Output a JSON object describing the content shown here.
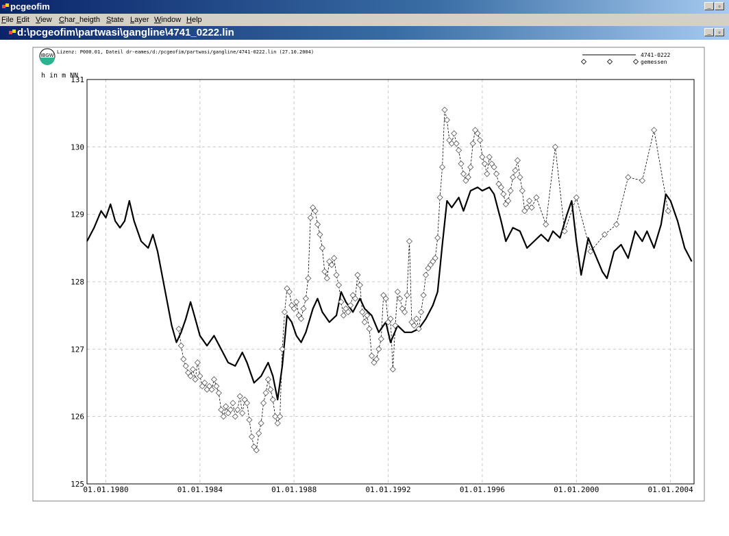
{
  "app": {
    "title": "pcgeofim",
    "menu": [
      {
        "label": "File",
        "u": "F",
        "rest": "ile"
      },
      {
        "label": "Edit",
        "u": "E",
        "rest": "dit"
      },
      {
        "label": "View",
        "u": "V",
        "rest": "iew"
      },
      {
        "label": "Char_heigth",
        "u": "C",
        "rest": "har_heigth"
      },
      {
        "label": "State",
        "u": "S",
        "rest": "tate"
      },
      {
        "label": "Layer",
        "u": "L",
        "rest": "ayer"
      },
      {
        "label": "Window",
        "u": "W",
        "rest": "indow"
      },
      {
        "label": "Help",
        "u": "H",
        "rest": "elp"
      }
    ]
  },
  "document": {
    "title": "d:\\pcgeofim\\partwasi\\gangline\\4741_0222.lin",
    "header_text": "Lizenz: P000.01, Dateil dr-eames/d:/pcgeofim/partwasi/gangline/4741-0222.lin (27.10.2004)",
    "logo_text": "IBGW"
  },
  "colors": {
    "titlebar": "#0a246a",
    "menubar": "#d4d0c8",
    "grid": "#c8c8c8"
  },
  "chart_data": {
    "type": "line",
    "title": "",
    "ylabel": "h in m NN",
    "xlabel": "",
    "ylim": [
      125,
      131
    ],
    "yticks": [
      125,
      126,
      127,
      128,
      129,
      130,
      131
    ],
    "xlim": [
      1979.2,
      2005.0
    ],
    "xticks": [
      {
        "x": 1980.0,
        "label": "01.01.1980"
      },
      {
        "x": 1984.0,
        "label": "01.01.1984"
      },
      {
        "x": 1988.0,
        "label": "01.01.1988"
      },
      {
        "x": 1992.0,
        "label": "01.01.1992"
      },
      {
        "x": 1996.0,
        "label": "01.01.1996"
      },
      {
        "x": 2000.0,
        "label": "01.01.2000"
      },
      {
        "x": 2004.0,
        "label": "01.01.2004"
      }
    ],
    "grid": true,
    "legend_position": "top-right",
    "series": [
      {
        "name": "4741-0222",
        "style": "solid",
        "points": [
          [
            1979.2,
            128.6
          ],
          [
            1979.5,
            128.8
          ],
          [
            1979.8,
            129.05
          ],
          [
            1980.0,
            128.95
          ],
          [
            1980.2,
            129.15
          ],
          [
            1980.4,
            128.9
          ],
          [
            1980.6,
            128.8
          ],
          [
            1980.8,
            128.9
          ],
          [
            1981.0,
            129.2
          ],
          [
            1981.2,
            128.9
          ],
          [
            1981.5,
            128.6
          ],
          [
            1981.8,
            128.5
          ],
          [
            1982.0,
            128.7
          ],
          [
            1982.2,
            128.45
          ],
          [
            1982.5,
            127.9
          ],
          [
            1982.8,
            127.35
          ],
          [
            1983.0,
            127.1
          ],
          [
            1983.2,
            127.25
          ],
          [
            1983.4,
            127.45
          ],
          [
            1983.6,
            127.7
          ],
          [
            1983.8,
            127.45
          ],
          [
            1984.0,
            127.2
          ],
          [
            1984.3,
            127.05
          ],
          [
            1984.6,
            127.2
          ],
          [
            1984.9,
            127.0
          ],
          [
            1985.2,
            126.8
          ],
          [
            1985.5,
            126.75
          ],
          [
            1985.8,
            126.95
          ],
          [
            1986.0,
            126.8
          ],
          [
            1986.3,
            126.5
          ],
          [
            1986.6,
            126.6
          ],
          [
            1986.9,
            126.8
          ],
          [
            1987.1,
            126.6
          ],
          [
            1987.3,
            126.25
          ],
          [
            1987.5,
            126.75
          ],
          [
            1987.7,
            127.5
          ],
          [
            1987.9,
            127.4
          ],
          [
            1988.1,
            127.2
          ],
          [
            1988.3,
            127.1
          ],
          [
            1988.5,
            127.25
          ],
          [
            1988.8,
            127.6
          ],
          [
            1989.0,
            127.75
          ],
          [
            1989.2,
            127.55
          ],
          [
            1989.5,
            127.4
          ],
          [
            1989.8,
            127.5
          ],
          [
            1990.0,
            127.85
          ],
          [
            1990.2,
            127.7
          ],
          [
            1990.5,
            127.55
          ],
          [
            1990.8,
            127.75
          ],
          [
            1991.0,
            127.6
          ],
          [
            1991.3,
            127.5
          ],
          [
            1991.6,
            127.25
          ],
          [
            1991.9,
            127.4
          ],
          [
            1992.1,
            127.1
          ],
          [
            1992.4,
            127.35
          ],
          [
            1992.7,
            127.25
          ],
          [
            1993.0,
            127.25
          ],
          [
            1993.3,
            127.3
          ],
          [
            1993.6,
            127.45
          ],
          [
            1993.9,
            127.65
          ],
          [
            1994.1,
            127.85
          ],
          [
            1994.3,
            128.55
          ],
          [
            1994.5,
            129.2
          ],
          [
            1994.7,
            129.1
          ],
          [
            1995.0,
            129.25
          ],
          [
            1995.2,
            129.05
          ],
          [
            1995.5,
            129.35
          ],
          [
            1995.8,
            129.4
          ],
          [
            1996.0,
            129.35
          ],
          [
            1996.3,
            129.4
          ],
          [
            1996.5,
            129.3
          ],
          [
            1996.8,
            128.9
          ],
          [
            1997.0,
            128.6
          ],
          [
            1997.3,
            128.8
          ],
          [
            1997.6,
            128.75
          ],
          [
            1997.9,
            128.5
          ],
          [
            1998.2,
            128.6
          ],
          [
            1998.5,
            128.7
          ],
          [
            1998.8,
            128.6
          ],
          [
            1999.0,
            128.75
          ],
          [
            1999.3,
            128.65
          ],
          [
            1999.6,
            129.0
          ],
          [
            1999.8,
            129.2
          ],
          [
            2000.0,
            128.6
          ],
          [
            2000.2,
            128.1
          ],
          [
            2000.5,
            128.65
          ],
          [
            2000.8,
            128.4
          ],
          [
            2001.1,
            128.15
          ],
          [
            2001.3,
            128.05
          ],
          [
            2001.6,
            128.45
          ],
          [
            2001.9,
            128.55
          ],
          [
            2002.2,
            128.35
          ],
          [
            2002.5,
            128.75
          ],
          [
            2002.8,
            128.6
          ],
          [
            2003.0,
            128.75
          ],
          [
            2003.3,
            128.5
          ],
          [
            2003.6,
            128.85
          ],
          [
            2003.8,
            129.3
          ],
          [
            2004.0,
            129.2
          ],
          [
            2004.3,
            128.9
          ],
          [
            2004.6,
            128.5
          ],
          [
            2004.9,
            128.3
          ]
        ]
      },
      {
        "name": "gemessen",
        "style": "dashed-diamond",
        "points": [
          [
            1983.1,
            127.3
          ],
          [
            1983.2,
            127.05
          ],
          [
            1983.3,
            126.85
          ],
          [
            1983.4,
            126.75
          ],
          [
            1983.5,
            126.65
          ],
          [
            1983.6,
            126.6
          ],
          [
            1983.7,
            126.7
          ],
          [
            1983.8,
            126.55
          ],
          [
            1983.9,
            126.8
          ],
          [
            1984.0,
            126.6
          ],
          [
            1984.1,
            126.45
          ],
          [
            1984.2,
            126.5
          ],
          [
            1984.3,
            126.4
          ],
          [
            1984.4,
            126.45
          ],
          [
            1984.5,
            126.4
          ],
          [
            1984.6,
            126.55
          ],
          [
            1984.7,
            126.45
          ],
          [
            1984.8,
            126.35
          ],
          [
            1984.9,
            126.1
          ],
          [
            1985.0,
            126.0
          ],
          [
            1985.1,
            126.15
          ],
          [
            1985.2,
            126.05
          ],
          [
            1985.3,
            126.1
          ],
          [
            1985.4,
            126.2
          ],
          [
            1985.5,
            126.0
          ],
          [
            1985.6,
            126.1
          ],
          [
            1985.7,
            126.3
          ],
          [
            1985.8,
            126.05
          ],
          [
            1985.9,
            126.25
          ],
          [
            1986.0,
            126.2
          ],
          [
            1986.1,
            125.95
          ],
          [
            1986.2,
            125.7
          ],
          [
            1986.3,
            125.55
          ],
          [
            1986.4,
            125.5
          ],
          [
            1986.5,
            125.75
          ],
          [
            1986.6,
            125.9
          ],
          [
            1986.7,
            126.2
          ],
          [
            1986.8,
            126.35
          ],
          [
            1986.9,
            126.55
          ],
          [
            1987.0,
            126.4
          ],
          [
            1987.1,
            126.25
          ],
          [
            1987.2,
            126.0
          ],
          [
            1987.3,
            125.9
          ],
          [
            1987.4,
            126.0
          ],
          [
            1987.5,
            127.0
          ],
          [
            1987.6,
            127.55
          ],
          [
            1987.7,
            127.9
          ],
          [
            1987.8,
            127.85
          ],
          [
            1987.9,
            127.65
          ],
          [
            1988.0,
            127.6
          ],
          [
            1988.1,
            127.7
          ],
          [
            1988.2,
            127.5
          ],
          [
            1988.3,
            127.45
          ],
          [
            1988.4,
            127.6
          ],
          [
            1988.5,
            127.75
          ],
          [
            1988.6,
            128.05
          ],
          [
            1988.7,
            128.95
          ],
          [
            1988.8,
            129.1
          ],
          [
            1988.9,
            129.05
          ],
          [
            1989.0,
            128.85
          ],
          [
            1989.1,
            128.7
          ],
          [
            1989.2,
            128.5
          ],
          [
            1989.3,
            128.15
          ],
          [
            1989.4,
            128.05
          ],
          [
            1989.5,
            128.3
          ],
          [
            1989.6,
            128.25
          ],
          [
            1989.7,
            128.35
          ],
          [
            1989.8,
            128.1
          ],
          [
            1989.9,
            127.95
          ],
          [
            1990.0,
            127.7
          ],
          [
            1990.1,
            127.5
          ],
          [
            1990.2,
            127.6
          ],
          [
            1990.3,
            127.55
          ],
          [
            1990.4,
            127.65
          ],
          [
            1990.5,
            127.8
          ],
          [
            1990.6,
            127.75
          ],
          [
            1990.7,
            128.1
          ],
          [
            1990.8,
            127.95
          ],
          [
            1990.9,
            127.55
          ],
          [
            1991.0,
            127.4
          ],
          [
            1991.1,
            127.5
          ],
          [
            1991.2,
            127.3
          ],
          [
            1991.3,
            126.9
          ],
          [
            1991.4,
            126.8
          ],
          [
            1991.5,
            126.85
          ],
          [
            1991.6,
            127.0
          ],
          [
            1991.7,
            127.15
          ],
          [
            1991.8,
            127.8
          ],
          [
            1991.9,
            127.75
          ],
          [
            1992.0,
            127.4
          ],
          [
            1992.1,
            127.45
          ],
          [
            1992.2,
            126.7
          ],
          [
            1992.3,
            127.35
          ],
          [
            1992.4,
            127.85
          ],
          [
            1992.5,
            127.75
          ],
          [
            1992.6,
            127.6
          ],
          [
            1992.7,
            127.55
          ],
          [
            1992.8,
            127.8
          ],
          [
            1992.9,
            128.6
          ],
          [
            1993.0,
            127.4
          ],
          [
            1993.1,
            127.35
          ],
          [
            1993.2,
            127.45
          ],
          [
            1993.3,
            127.3
          ],
          [
            1993.4,
            127.55
          ],
          [
            1993.5,
            127.8
          ],
          [
            1993.6,
            128.1
          ],
          [
            1993.7,
            128.2
          ],
          [
            1993.8,
            128.25
          ],
          [
            1993.9,
            128.3
          ],
          [
            1994.0,
            128.35
          ],
          [
            1994.1,
            128.65
          ],
          [
            1994.2,
            129.25
          ],
          [
            1994.3,
            129.7
          ],
          [
            1994.4,
            130.55
          ],
          [
            1994.5,
            130.4
          ],
          [
            1994.6,
            130.1
          ],
          [
            1994.7,
            130.05
          ],
          [
            1994.8,
            130.2
          ],
          [
            1994.9,
            130.05
          ],
          [
            1995.0,
            129.95
          ],
          [
            1995.1,
            129.75
          ],
          [
            1995.2,
            129.6
          ],
          [
            1995.3,
            129.5
          ],
          [
            1995.4,
            129.55
          ],
          [
            1995.5,
            129.7
          ],
          [
            1995.6,
            130.05
          ],
          [
            1995.7,
            130.25
          ],
          [
            1995.8,
            130.2
          ],
          [
            1995.9,
            130.1
          ],
          [
            1996.0,
            129.85
          ],
          [
            1996.1,
            129.75
          ],
          [
            1996.2,
            129.6
          ],
          [
            1996.3,
            129.85
          ],
          [
            1996.4,
            129.75
          ],
          [
            1996.5,
            129.7
          ],
          [
            1996.6,
            129.6
          ],
          [
            1996.7,
            129.45
          ],
          [
            1996.8,
            129.4
          ],
          [
            1996.9,
            129.3
          ],
          [
            1997.0,
            129.15
          ],
          [
            1997.1,
            129.2
          ],
          [
            1997.2,
            129.35
          ],
          [
            1997.3,
            129.55
          ],
          [
            1997.4,
            129.65
          ],
          [
            1997.5,
            129.8
          ],
          [
            1997.6,
            129.55
          ],
          [
            1997.7,
            129.35
          ],
          [
            1997.8,
            129.05
          ],
          [
            1997.9,
            129.1
          ],
          [
            1998.0,
            129.2
          ],
          [
            1998.1,
            129.1
          ],
          [
            1998.3,
            129.25
          ],
          [
            1998.7,
            128.85
          ],
          [
            1999.1,
            130.0
          ],
          [
            1999.5,
            128.75
          ],
          [
            2000.0,
            129.25
          ],
          [
            2000.6,
            128.45
          ],
          [
            2001.2,
            128.7
          ],
          [
            2001.7,
            128.85
          ],
          [
            2002.2,
            129.55
          ],
          [
            2002.8,
            129.5
          ],
          [
            2003.3,
            130.25
          ],
          [
            2003.9,
            129.05
          ]
        ]
      }
    ]
  }
}
